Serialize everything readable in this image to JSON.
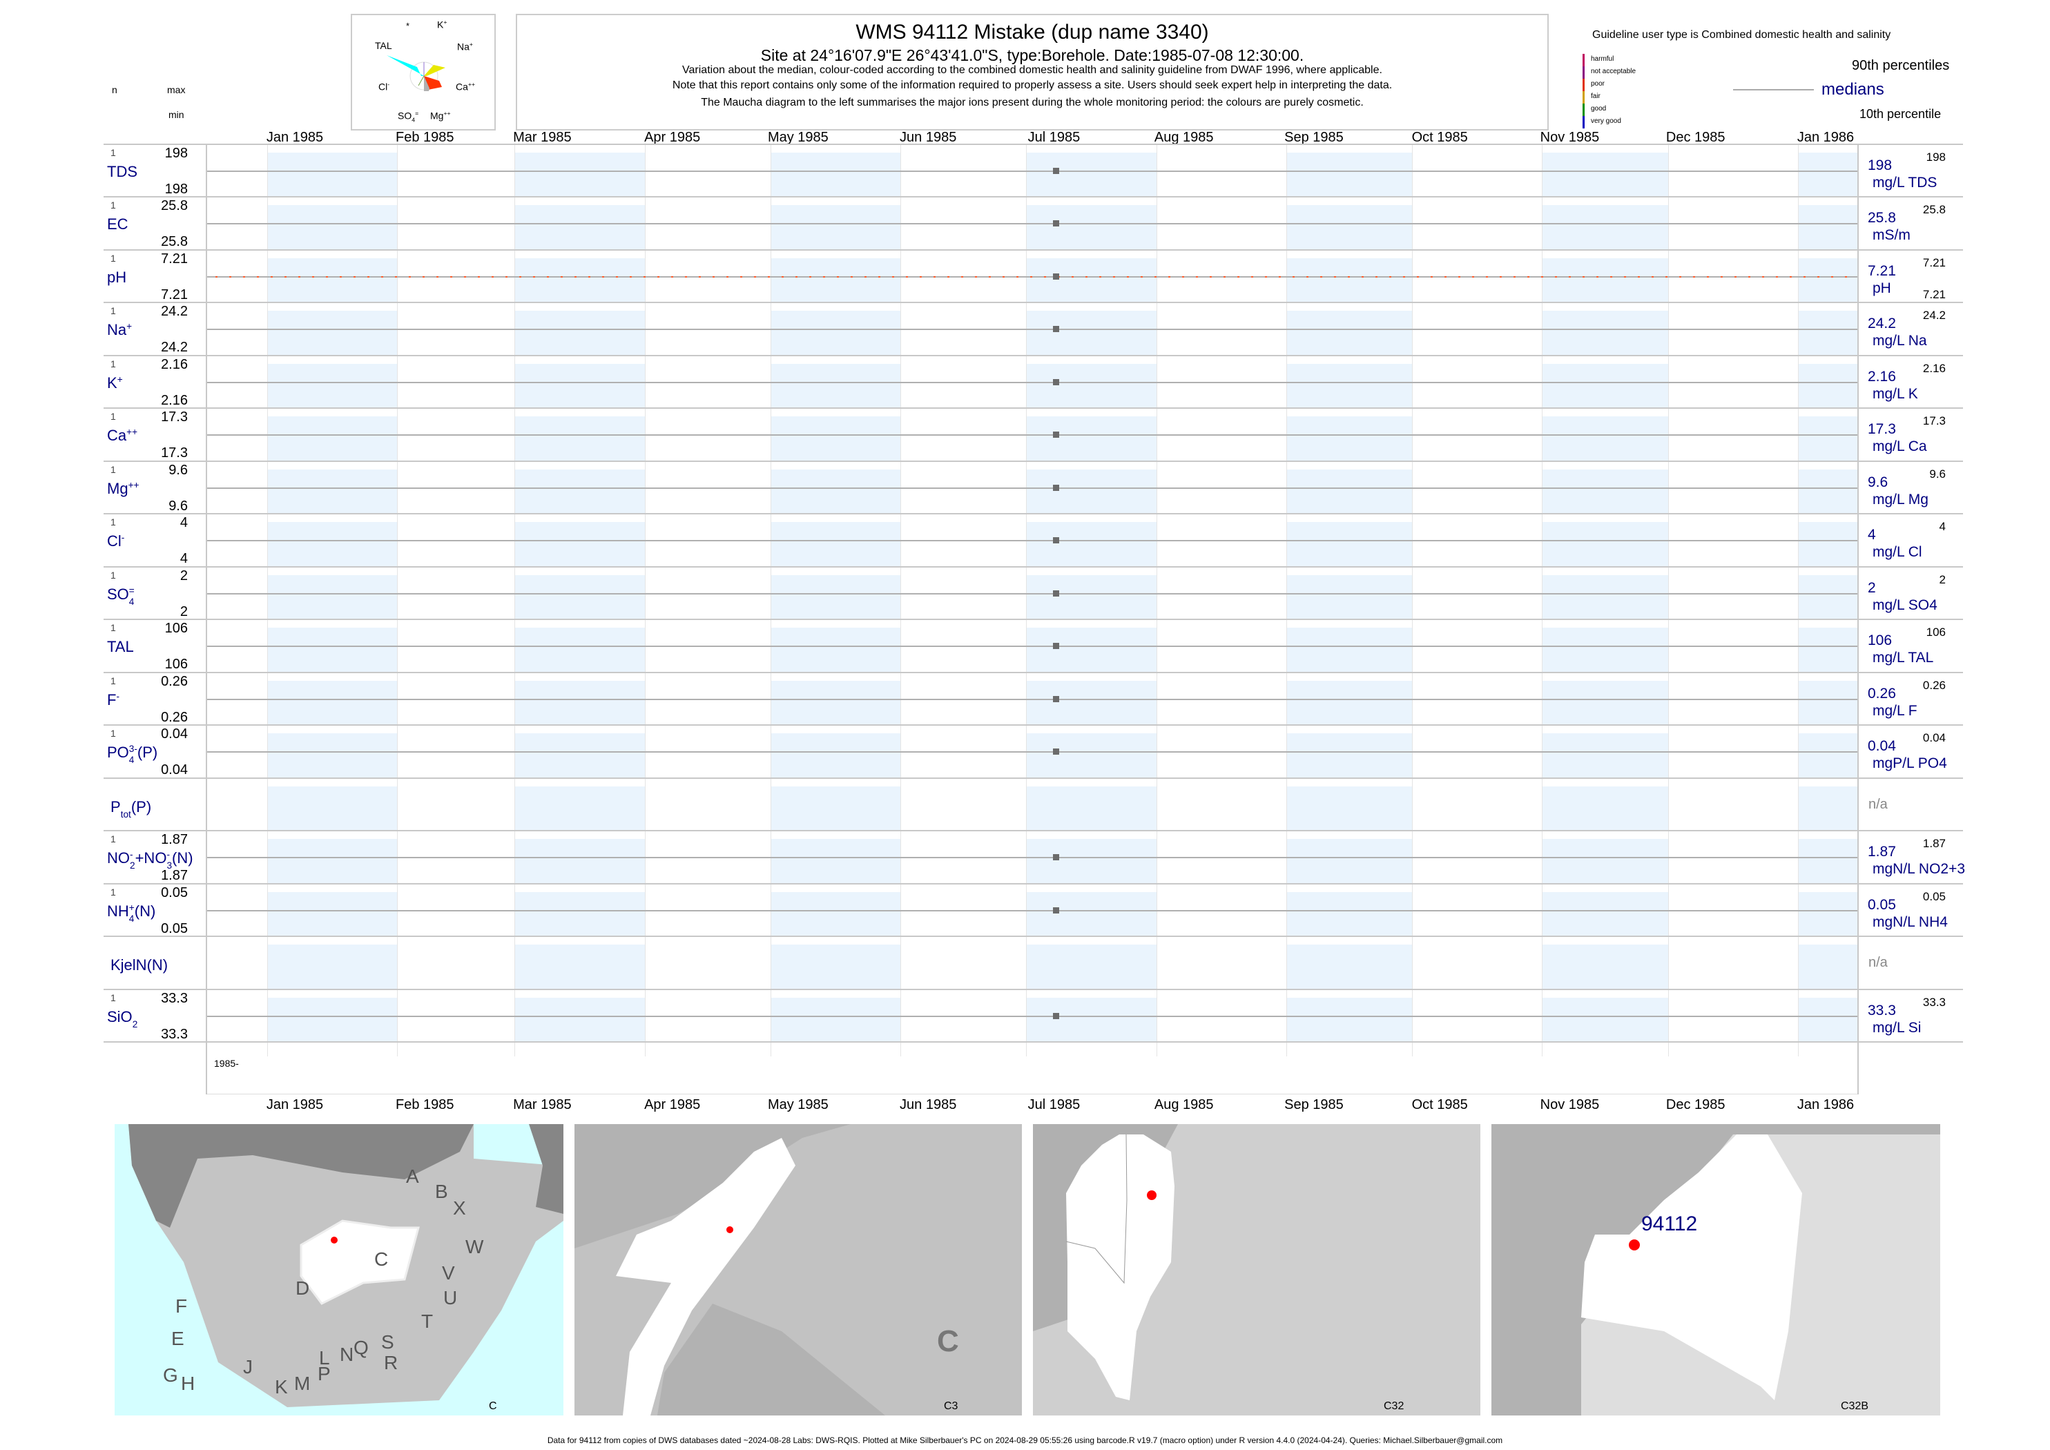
{
  "header": {
    "title": "WMS 94112  Mistake (dup name 3340)",
    "site": "Site at 24°16'07.9\"E 26°43'41.0\"S, type:Borehole. Date:1985-07-08 12:30:00.",
    "note1": "Variation about the median,  colour-coded according to the combined domestic health and salinity guideline from DWAF 1996, where applicable.",
    "note2": "Note that this report contains only some of the information required to properly assess a site. Users should seek expert help in interpreting the data.",
    "note3": "The Maucha diagram to the left summarises the major ions present during the whole monitoring period: the colours are purely cosmetic."
  },
  "column_heads": {
    "n": "n",
    "max": "max",
    "min": "min"
  },
  "maucha": {
    "labels": {
      "star": "*",
      "K": "K",
      "K_sup": "+",
      "Na": "Na",
      "Na_sup": "+",
      "Ca": "Ca",
      "Ca_sup": "++",
      "Mg": "Mg",
      "Mg_sup": "++",
      "SO4": "SO",
      "SO4_sub": "4",
      "SO4_sup": "=",
      "Cl": "Cl",
      "Cl_sup": "-",
      "TAL": "TAL"
    },
    "colors": {
      "TAL": "#00ffff",
      "Na": "#e8e800",
      "Ca": "#ff3300",
      "Mg": "#b0b0b0"
    }
  },
  "legend": {
    "guideline": "Guideline user type is Combined domestic health and salinity",
    "classes": [
      {
        "label": "harmful",
        "color": "#c00060"
      },
      {
        "label": "not acceptable",
        "color": "#8b0080"
      },
      {
        "label": "poor",
        "color": "#e03000"
      },
      {
        "label": "fair",
        "color": "#d0a000"
      },
      {
        "label": "good",
        "color": "#009000"
      },
      {
        "label": "very good",
        "color": "#0000c0"
      }
    ],
    "p90": "90th percentiles",
    "medians": "medians",
    "p10": "10th percentile"
  },
  "axis": {
    "months": [
      "Jan 1985",
      "Feb 1985",
      "Mar 1985",
      "Apr 1985",
      "May 1985",
      "Jun 1985",
      "Jul 1985",
      "Aug 1985",
      "Sep 1985",
      "Oct 1985",
      "Nov 1985",
      "Dec 1985",
      "Jan 1986"
    ],
    "year_label": "1985-"
  },
  "chart_data": {
    "type": "scatter",
    "x_range": [
      "1985-01-01",
      "1986-01-01"
    ],
    "sample_date": "1985-07-08",
    "guideline_line": {
      "parameter": "pH",
      "value": 7.21,
      "color": "#ff5a2a"
    },
    "rows": [
      {
        "label": [
          {
            "t": "TDS"
          }
        ],
        "n": "1",
        "max": "198",
        "min": "198",
        "median": "198",
        "unit": "mg/L TDS",
        "value": 198
      },
      {
        "label": [
          {
            "t": "EC"
          }
        ],
        "n": "1",
        "max": "25.8",
        "min": "25.8",
        "median": "25.8",
        "unit": "mS/m",
        "value": 25.8
      },
      {
        "label": [
          {
            "t": "pH"
          }
        ],
        "n": "1",
        "max": "7.21",
        "min": "7.21",
        "median": "7.21",
        "unit": "pH",
        "value": 7.21,
        "right_min": "7.21"
      },
      {
        "label": [
          {
            "t": "Na",
            "sup": "+"
          }
        ],
        "n": "1",
        "max": "24.2",
        "min": "24.2",
        "median": "24.2",
        "unit": "mg/L Na",
        "value": 24.2
      },
      {
        "label": [
          {
            "t": "K",
            "sup": "+"
          }
        ],
        "n": "1",
        "max": "2.16",
        "min": "2.16",
        "median": "2.16",
        "unit": "mg/L K",
        "value": 2.16
      },
      {
        "label": [
          {
            "t": "Ca",
            "sup": "++"
          }
        ],
        "n": "1",
        "max": "17.3",
        "min": "17.3",
        "median": "17.3",
        "unit": "mg/L Ca",
        "value": 17.3
      },
      {
        "label": [
          {
            "t": "Mg",
            "sup": "++"
          }
        ],
        "n": "1",
        "max": "9.6",
        "min": "9.6",
        "median": "9.6",
        "unit": "mg/L Mg",
        "value": 9.6
      },
      {
        "label": [
          {
            "t": "Cl",
            "sup": "-"
          }
        ],
        "n": "1",
        "max": "4",
        "min": "4",
        "median": "4",
        "unit": "mg/L Cl",
        "value": 4
      },
      {
        "label": [
          {
            "t": "SO",
            "sub": "4",
            "sup": "="
          }
        ],
        "n": "1",
        "max": "2",
        "min": "2",
        "median": "2",
        "unit": "mg/L SO4",
        "value": 2
      },
      {
        "label": [
          {
            "t": "TAL"
          }
        ],
        "n": "1",
        "max": "106",
        "min": "106",
        "median": "106",
        "unit": "mg/L TAL",
        "value": 106
      },
      {
        "label": [
          {
            "t": "F",
            "sup": "-"
          }
        ],
        "n": "1",
        "max": "0.26",
        "min": "0.26",
        "median": "0.26",
        "unit": "mg/L F",
        "value": 0.26
      },
      {
        "label": [
          {
            "t": "PO",
            "sub": "4",
            "sup": "3-"
          },
          {
            "t": "(P)"
          }
        ],
        "n": "1",
        "max": "0.04",
        "min": "0.04",
        "median": "0.04",
        "unit": "mgP/L PO4",
        "value": 0.04
      },
      {
        "label": [
          {
            "t": "P",
            "sub": "tot"
          },
          {
            "t": "(P)"
          }
        ],
        "na": "n/a"
      },
      {
        "label": [
          {
            "t": "NO",
            "sub": "2",
            "sup": "-"
          },
          {
            "t": "+NO",
            "sub": "3",
            "sup": "-"
          },
          {
            "t": "(N)"
          }
        ],
        "n": "1",
        "max": "1.87",
        "min": "1.87",
        "median": "1.87",
        "unit": "mgN/L NO2+3",
        "value": 1.87
      },
      {
        "label": [
          {
            "t": "NH",
            "sub": "4",
            "sup": "+"
          },
          {
            "t": "(N)"
          }
        ],
        "n": "1",
        "max": "0.05",
        "min": "0.05",
        "median": "0.05",
        "unit": "mgN/L NH4",
        "value": 0.05
      },
      {
        "label": [
          {
            "t": "KjelN(N)"
          }
        ],
        "na": "n/a"
      },
      {
        "label": [
          {
            "t": "SiO",
            "sub": "2"
          }
        ],
        "n": "1",
        "max": "33.3",
        "min": "33.3",
        "median": "33.3",
        "unit": "mg/L Si",
        "value": 33.3
      }
    ]
  },
  "maps": [
    {
      "name": "C",
      "letters": [
        "A",
        "B",
        "X",
        "W",
        "C",
        "D",
        "V",
        "U",
        "T",
        "F",
        "E",
        "S",
        "Q",
        "R",
        "N",
        "L",
        "G",
        "H",
        "J",
        "K",
        "M",
        "P"
      ]
    },
    {
      "name": "C3",
      "big_letter": "C"
    },
    {
      "name": "C32"
    },
    {
      "name": "C32B",
      "station": "94112"
    }
  ],
  "footer": "Data for 94112 from copies of DWS databases dated ~2024-08-28 Labs: DWS-RQIS. Plotted at Mike Silberbauer's PC on 2024-08-29 05:55:26 using barcode.R v19.7 (macro option) under R version 4.4.0 (2024-04-24). Queries: Michael.Silberbauer@gmail.com"
}
